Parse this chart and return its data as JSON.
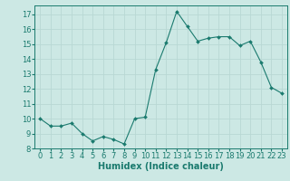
{
  "x": [
    0,
    1,
    2,
    3,
    4,
    5,
    6,
    7,
    8,
    9,
    10,
    11,
    12,
    13,
    14,
    15,
    16,
    17,
    18,
    19,
    20,
    21,
    22,
    23
  ],
  "y": [
    10.0,
    9.5,
    9.5,
    9.7,
    9.0,
    8.5,
    8.8,
    8.6,
    8.3,
    10.0,
    10.1,
    13.3,
    15.1,
    17.2,
    16.2,
    15.2,
    15.4,
    15.5,
    15.5,
    14.9,
    15.2,
    13.8,
    12.1,
    11.7
  ],
  "xlabel": "Humidex (Indice chaleur)",
  "xlim": [
    -0.5,
    23.5
  ],
  "ylim": [
    8,
    17.6
  ],
  "yticks": [
    8,
    9,
    10,
    11,
    12,
    13,
    14,
    15,
    16,
    17
  ],
  "xticks": [
    0,
    1,
    2,
    3,
    4,
    5,
    6,
    7,
    8,
    9,
    10,
    11,
    12,
    13,
    14,
    15,
    16,
    17,
    18,
    19,
    20,
    21,
    22,
    23
  ],
  "line_color": "#1a7a6e",
  "bg_color": "#cce8e4",
  "grid_color": "#b8d8d4",
  "xlabel_fontsize": 7,
  "tick_fontsize": 6
}
